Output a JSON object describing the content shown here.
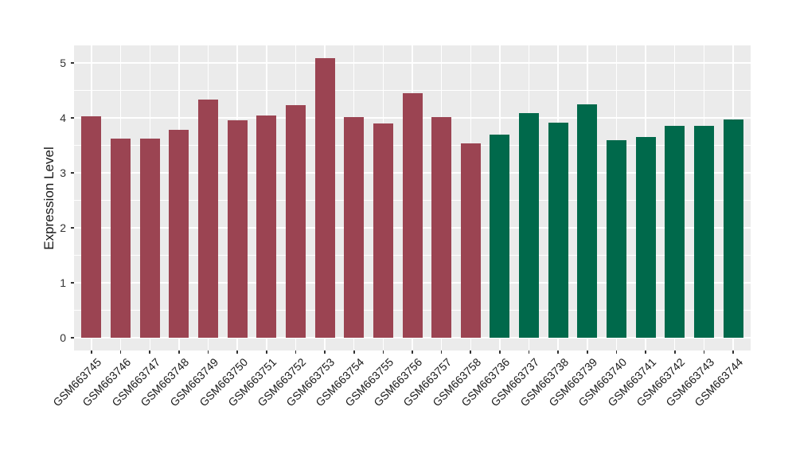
{
  "chart_data": {
    "type": "bar",
    "title": "",
    "xlabel": "",
    "ylabel": "Expression Level",
    "categories": [
      "GSM663745",
      "GSM663746",
      "GSM663747",
      "GSM663748",
      "GSM663749",
      "GSM663750",
      "GSM663751",
      "GSM663752",
      "GSM663753",
      "GSM663754",
      "GSM663755",
      "GSM663756",
      "GSM663757",
      "GSM663758",
      "GSM663736",
      "GSM663737",
      "GSM663738",
      "GSM663739",
      "GSM663740",
      "GSM663741",
      "GSM663742",
      "GSM663743",
      "GSM663744"
    ],
    "values": [
      4.03,
      3.62,
      3.62,
      3.78,
      4.33,
      3.95,
      4.05,
      4.23,
      5.09,
      4.01,
      3.9,
      4.45,
      4.01,
      3.53,
      3.7,
      4.08,
      3.92,
      4.24,
      3.6,
      3.65,
      3.86,
      3.86,
      3.97
    ],
    "groups": [
      "red",
      "red",
      "red",
      "red",
      "red",
      "red",
      "red",
      "red",
      "red",
      "red",
      "red",
      "red",
      "red",
      "red",
      "green",
      "green",
      "green",
      "green",
      "green",
      "green",
      "green",
      "green",
      "green"
    ],
    "group_colors": {
      "red": "#9B4452",
      "green": "#00694B"
    },
    "yticks": [
      0,
      1,
      2,
      3,
      4,
      5
    ],
    "minor_yticks": [
      0.5,
      1.5,
      2.5,
      3.5,
      4.5
    ],
    "ylim": [
      -0.2,
      5.32
    ],
    "legend": "none",
    "panel_bg": "#EBEBEB",
    "grid_color": "#FFFFFF",
    "axis_text_color": "#1a1a1a"
  }
}
